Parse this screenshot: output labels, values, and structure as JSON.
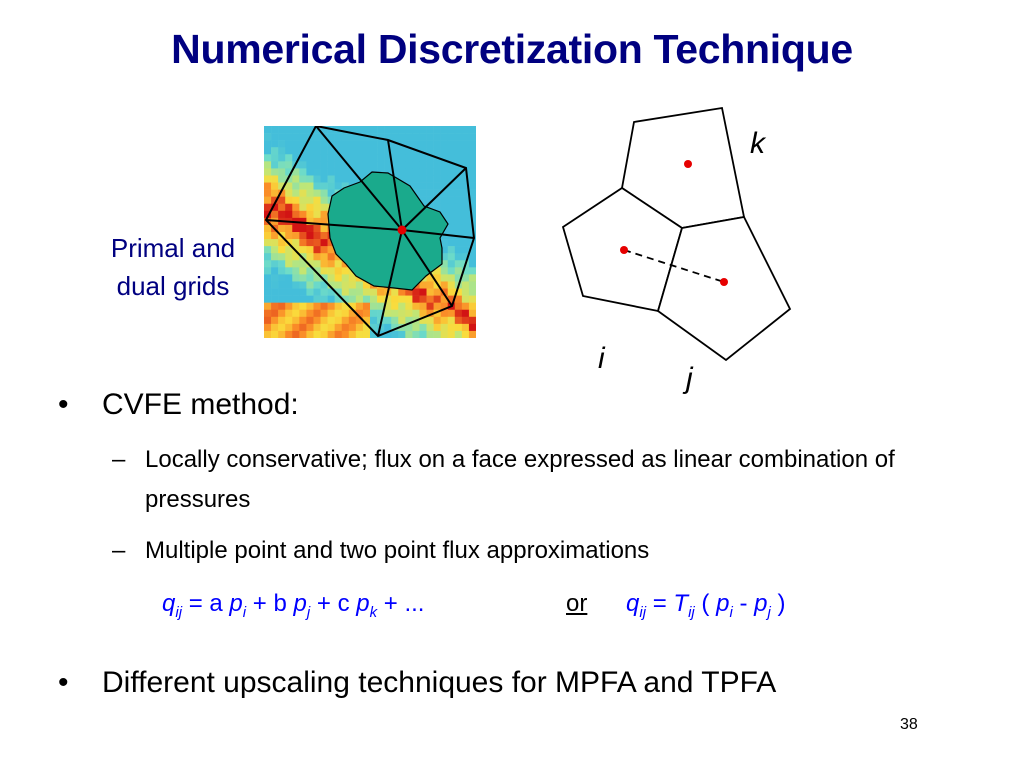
{
  "slide": {
    "title": "Numerical Discretization Technique",
    "side_label_line1": "Primal and",
    "side_label_line2": "dual grids",
    "page_number": "38"
  },
  "diagram": {
    "labels": {
      "k": "k",
      "i": "i",
      "j": "j"
    },
    "point_color": "#e60000",
    "dual_cell_color": "#1aaa8c"
  },
  "bullets": [
    {
      "marker": "•",
      "text": "CVFE method:"
    },
    {
      "marker": "•",
      "text": "Different upscaling techniques for MPFA and TPFA"
    }
  ],
  "sub_bullets": [
    {
      "marker": "–",
      "text": "Locally conservative; flux on a face expressed as linear combination of pressures"
    },
    {
      "marker": "–",
      "text": "Multiple point and two point flux approximations"
    }
  ],
  "equation": {
    "left": {
      "q": "q",
      "ij": "ij",
      "eq": "=",
      "a": "a",
      "p1": "p",
      "s1": "i",
      "plus1": "+",
      "b": "b",
      "p2": "p",
      "s2": "j",
      "plus2": "+",
      "c": "c",
      "p3": "p",
      "s3": "k",
      "plus3": "+",
      "dots": "..."
    },
    "or": "or",
    "right": {
      "q": "q",
      "ij": "ij",
      "eq": "=",
      "T": "T",
      "Tij": "ij",
      "lp": "(",
      "p1": "p",
      "s1": "i",
      "minus": "-",
      "p2": "p",
      "s2": "j",
      "rp": ")"
    }
  }
}
